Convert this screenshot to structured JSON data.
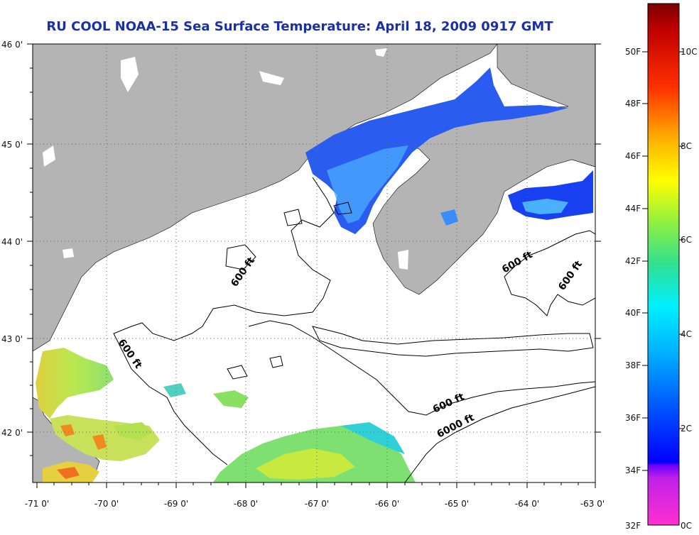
{
  "title": "RU COOL  NOAA-15  Sea Surface Temperature:  April 18, 2009 0917 GMT",
  "lon_ticks": [
    "-71 0'",
    "-70 0'",
    "-69 0'",
    "-68 0'",
    "-67 0'",
    "-66 0'",
    "-65 0'",
    "-64 0'",
    "-63 0'"
  ],
  "lat_ticks": [
    "46 0'",
    "45 0'",
    "44 0'",
    "43 0'",
    "42 0'"
  ],
  "contour_labels": [
    "600 ft",
    "600 ft",
    "600 ft",
    "600 ft",
    "600 ft",
    "6000 ft"
  ],
  "colorbar": {
    "fahrenheit": [
      "50F",
      "48F",
      "46F",
      "44F",
      "42F",
      "40F",
      "38F",
      "36F",
      "34F",
      "32F"
    ],
    "celsius": [
      "10C",
      "8C",
      "6C",
      "4C",
      "2C",
      "0C"
    ]
  },
  "colors": {
    "land": "#b4b4b4",
    "sea_no_data": "#ffffff",
    "title": "#1a2fa8",
    "colormap": [
      "#ff30d0",
      "#9a00ff",
      "#0000ff",
      "#0090ff",
      "#00f0ff",
      "#20e080",
      "#a0ff20",
      "#ffff00",
      "#ffa000",
      "#ff2000",
      "#900000"
    ]
  }
}
